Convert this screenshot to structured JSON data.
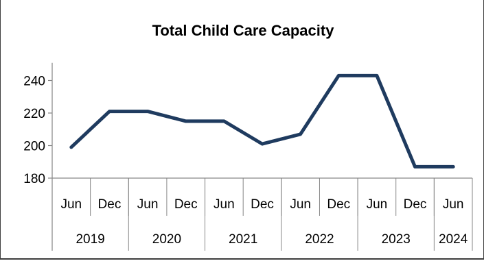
{
  "chart_data": {
    "type": "line",
    "title": "Total Child Care Capacity",
    "xlabel": "",
    "ylabel": "",
    "x": [
      "Jun",
      "Dec",
      "Jun",
      "Dec",
      "Jun",
      "Dec",
      "Jun",
      "Dec",
      "Jun",
      "Dec",
      "Jun"
    ],
    "year_groups": [
      {
        "label": "2019",
        "span": 2
      },
      {
        "label": "2020",
        "span": 2
      },
      {
        "label": "2021",
        "span": 2
      },
      {
        "label": "2022",
        "span": 2
      },
      {
        "label": "2023",
        "span": 2
      },
      {
        "label": "2024",
        "span": 1
      }
    ],
    "series": [
      {
        "values": [
          199,
          221,
          221,
          215,
          215,
          201,
          207,
          243,
          243,
          187,
          187
        ],
        "color": "#1f3b5f"
      }
    ],
    "ylim": [
      180,
      250
    ],
    "yticks": [
      180,
      200,
      220,
      240
    ],
    "grid": false,
    "legend": "none"
  }
}
